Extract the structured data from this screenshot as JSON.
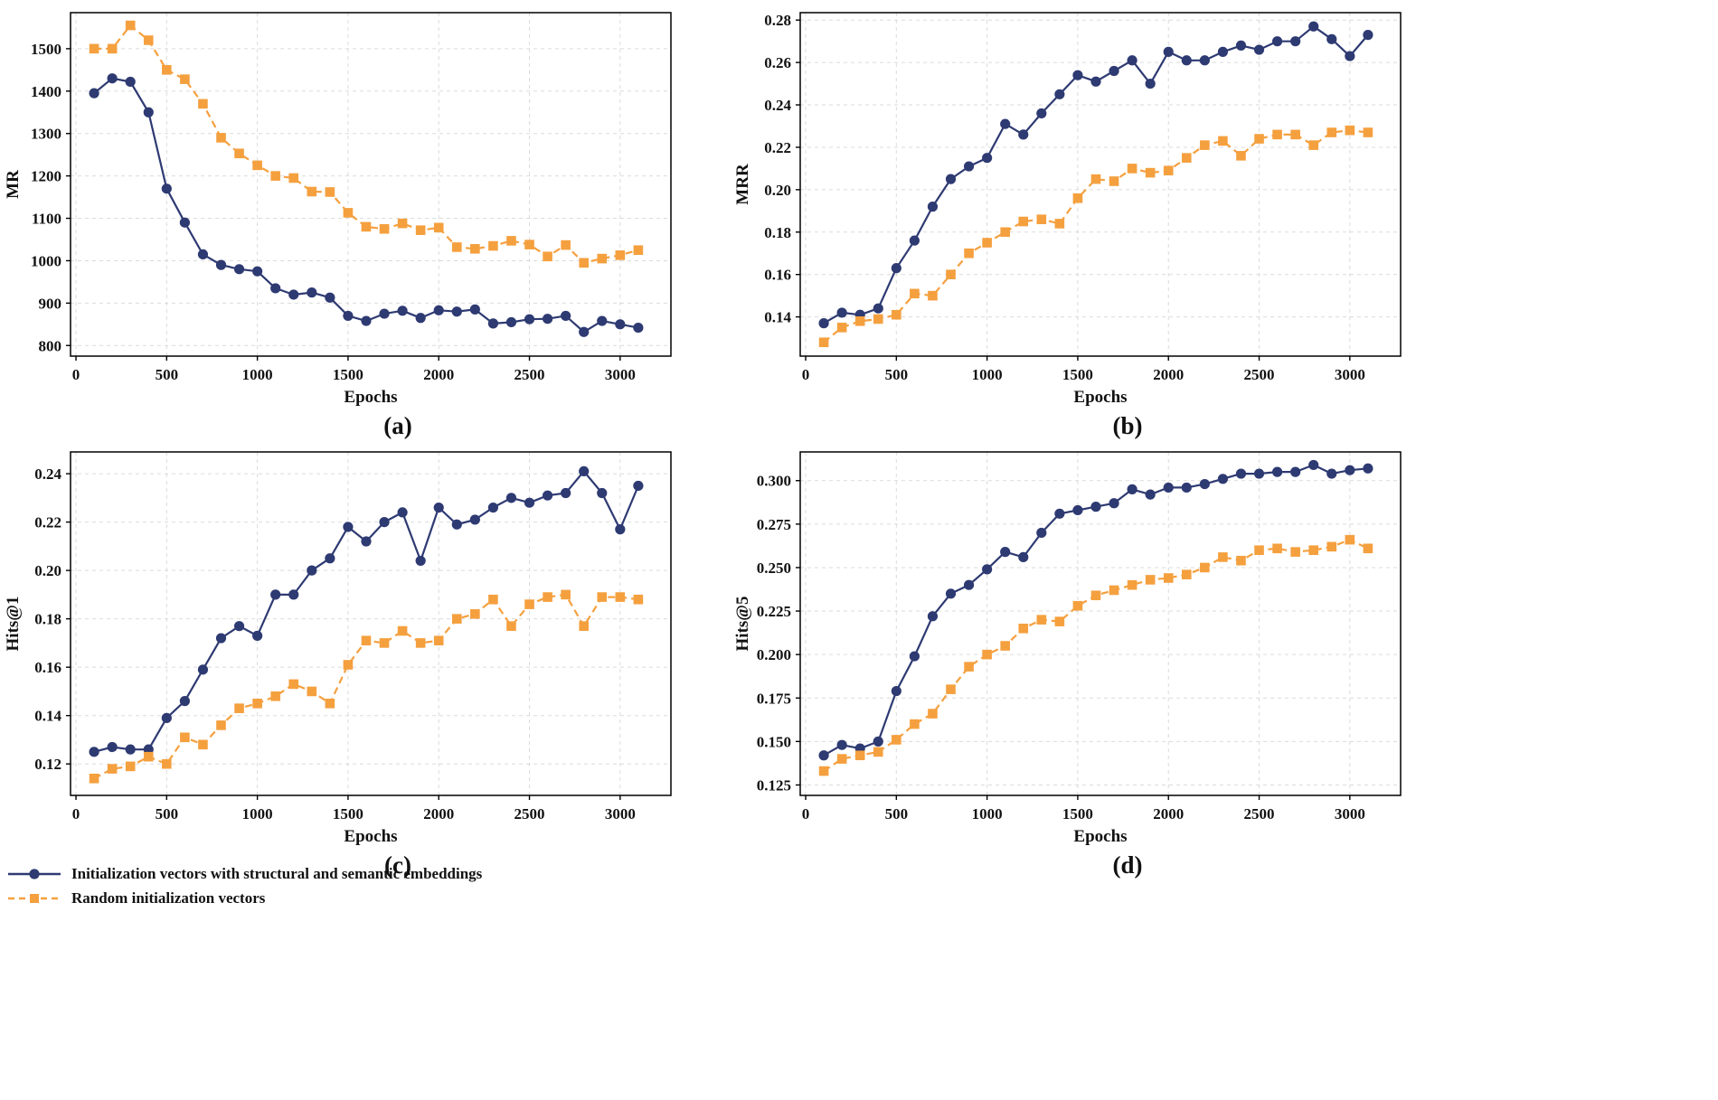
{
  "figure": {
    "description": "Four line charts comparing two embedding initialization strategies over training epochs"
  },
  "series_styles": [
    {
      "name": "Initialization vectors with structural and semantic embeddings",
      "color": "#2e3a72",
      "marker": "circle",
      "line": "solid"
    },
    {
      "name": "Random initialization vectors",
      "color": "#f5a03f",
      "marker": "square",
      "line": "dashed"
    }
  ],
  "legend": {
    "items": [
      {
        "label": "Initialization vectors with structural and semantic embeddings"
      },
      {
        "label": "Random initialization vectors"
      }
    ],
    "position": "bottom-left"
  },
  "chart_data": [
    {
      "type": "line",
      "panel": "(a)",
      "xlabel": "Epochs",
      "ylabel": "MR",
      "grid": true,
      "x": [
        100,
        200,
        300,
        400,
        500,
        600,
        700,
        800,
        900,
        1000,
        1100,
        1200,
        1300,
        1400,
        1500,
        1600,
        1700,
        1800,
        1900,
        2000,
        2100,
        2200,
        2300,
        2400,
        2500,
        2600,
        2700,
        2800,
        2900,
        3000,
        3100
      ],
      "series": [
        {
          "name": "Initialization vectors with structural and semantic embeddings",
          "values": [
            1395,
            1430,
            1422,
            1350,
            1170,
            1090,
            1015,
            990,
            980,
            975,
            935,
            920,
            925,
            913,
            870,
            858,
            875,
            882,
            865,
            883,
            880,
            885,
            852,
            855,
            862,
            863,
            870,
            832,
            858,
            850,
            842
          ]
        },
        {
          "name": "Random initialization vectors",
          "values": [
            1500,
            1500,
            1555,
            1520,
            1450,
            1428,
            1370,
            1290,
            1253,
            1225,
            1200,
            1195,
            1163,
            1162,
            1113,
            1080,
            1075,
            1088,
            1072,
            1078,
            1032,
            1028,
            1035,
            1047,
            1038,
            1010,
            1037,
            995,
            1005,
            1013,
            1025
          ]
        }
      ],
      "xlim": [
        -30,
        3280
      ],
      "ylim": [
        775,
        1585
      ],
      "xticks": [
        0,
        500,
        1000,
        1500,
        2000,
        2500,
        3000
      ],
      "xtick_labels": [
        "0",
        "500",
        "1000",
        "1500",
        "2000",
        "2500",
        "3000"
      ],
      "yticks": [
        800,
        900,
        1000,
        1100,
        1200,
        1300,
        1400,
        1500
      ],
      "ytick_labels": [
        "800",
        "900",
        "1000",
        "1100",
        "1200",
        "1300",
        "1400",
        "1500"
      ]
    },
    {
      "type": "line",
      "panel": "(b)",
      "xlabel": "Epochs",
      "ylabel": "MRR",
      "grid": true,
      "x": [
        100,
        200,
        300,
        400,
        500,
        600,
        700,
        800,
        900,
        1000,
        1100,
        1200,
        1300,
        1400,
        1500,
        1600,
        1700,
        1800,
        1900,
        2000,
        2100,
        2200,
        2300,
        2400,
        2500,
        2600,
        2700,
        2800,
        2900,
        3000,
        3100
      ],
      "series": [
        {
          "name": "Initialization vectors with structural and semantic embeddings",
          "values": [
            0.137,
            0.142,
            0.141,
            0.144,
            0.163,
            0.176,
            0.192,
            0.205,
            0.211,
            0.215,
            0.231,
            0.226,
            0.236,
            0.245,
            0.254,
            0.251,
            0.256,
            0.261,
            0.25,
            0.265,
            0.261,
            0.261,
            0.265,
            0.268,
            0.266,
            0.27,
            0.27,
            0.277,
            0.271,
            0.263,
            0.273
          ]
        },
        {
          "name": "Random initialization vectors",
          "values": [
            0.128,
            0.135,
            0.138,
            0.139,
            0.141,
            0.151,
            0.15,
            0.16,
            0.17,
            0.175,
            0.18,
            0.185,
            0.186,
            0.184,
            0.196,
            0.205,
            0.204,
            0.21,
            0.208,
            0.209,
            0.215,
            0.221,
            0.223,
            0.216,
            0.224,
            0.226,
            0.226,
            0.221,
            0.227,
            0.228,
            0.227
          ]
        }
      ],
      "xlim": [
        -30,
        3280
      ],
      "ylim": [
        0.1215,
        0.2835
      ],
      "xticks": [
        0,
        500,
        1000,
        1500,
        2000,
        2500,
        3000
      ],
      "xtick_labels": [
        "0",
        "500",
        "1000",
        "1500",
        "2000",
        "2500",
        "3000"
      ],
      "yticks": [
        0.14,
        0.16,
        0.18,
        0.2,
        0.22,
        0.24,
        0.26,
        0.28
      ],
      "ytick_labels": [
        "0.14",
        "0.16",
        "0.18",
        "0.20",
        "0.22",
        "0.24",
        "0.26",
        "0.28"
      ]
    },
    {
      "type": "line",
      "panel": "(c)",
      "xlabel": "Epochs",
      "ylabel": "Hits@1",
      "grid": true,
      "x": [
        100,
        200,
        300,
        400,
        500,
        600,
        700,
        800,
        900,
        1000,
        1100,
        1200,
        1300,
        1400,
        1500,
        1600,
        1700,
        1800,
        1900,
        2000,
        2100,
        2200,
        2300,
        2400,
        2500,
        2600,
        2700,
        2800,
        2900,
        3000,
        3100
      ],
      "series": [
        {
          "name": "Initialization vectors with structural and semantic embeddings",
          "values": [
            0.125,
            0.127,
            0.126,
            0.126,
            0.139,
            0.146,
            0.159,
            0.172,
            0.177,
            0.173,
            0.19,
            0.19,
            0.2,
            0.205,
            0.218,
            0.212,
            0.22,
            0.224,
            0.204,
            0.226,
            0.219,
            0.221,
            0.226,
            0.23,
            0.228,
            0.231,
            0.232,
            0.241,
            0.232,
            0.217,
            0.235
          ]
        },
        {
          "name": "Random initialization vectors",
          "values": [
            0.114,
            0.118,
            0.119,
            0.123,
            0.12,
            0.131,
            0.128,
            0.136,
            0.143,
            0.145,
            0.148,
            0.153,
            0.15,
            0.145,
            0.161,
            0.171,
            0.17,
            0.175,
            0.17,
            0.171,
            0.18,
            0.182,
            0.188,
            0.177,
            0.186,
            0.189,
            0.19,
            0.177,
            0.189,
            0.189,
            0.188
          ]
        }
      ],
      "xlim": [
        -30,
        3280
      ],
      "ylim": [
        0.107,
        0.249
      ],
      "xticks": [
        0,
        500,
        1000,
        1500,
        2000,
        2500,
        3000
      ],
      "xtick_labels": [
        "0",
        "500",
        "1000",
        "1500",
        "2000",
        "2500",
        "3000"
      ],
      "yticks": [
        0.12,
        0.14,
        0.16,
        0.18,
        0.2,
        0.22,
        0.24
      ],
      "ytick_labels": [
        "0.12",
        "0.14",
        "0.16",
        "0.18",
        "0.20",
        "0.22",
        "0.24"
      ]
    },
    {
      "type": "line",
      "panel": "(d)",
      "xlabel": "Epochs",
      "ylabel": "Hits@5",
      "grid": true,
      "x": [
        100,
        200,
        300,
        400,
        500,
        600,
        700,
        800,
        900,
        1000,
        1100,
        1200,
        1300,
        1400,
        1500,
        1600,
        1700,
        1800,
        1900,
        2000,
        2100,
        2200,
        2300,
        2400,
        2500,
        2600,
        2700,
        2800,
        2900,
        3000,
        3100
      ],
      "series": [
        {
          "name": "Initialization vectors with structural and semantic embeddings",
          "values": [
            0.142,
            0.148,
            0.146,
            0.15,
            0.179,
            0.199,
            0.222,
            0.235,
            0.24,
            0.249,
            0.259,
            0.256,
            0.27,
            0.281,
            0.283,
            0.285,
            0.287,
            0.295,
            0.292,
            0.296,
            0.296,
            0.298,
            0.301,
            0.304,
            0.304,
            0.305,
            0.305,
            0.309,
            0.304,
            0.306,
            0.307
          ]
        },
        {
          "name": "Random initialization vectors",
          "values": [
            0.133,
            0.14,
            0.142,
            0.144,
            0.151,
            0.16,
            0.166,
            0.18,
            0.193,
            0.2,
            0.205,
            0.215,
            0.22,
            0.219,
            0.228,
            0.234,
            0.237,
            0.24,
            0.243,
            0.244,
            0.246,
            0.25,
            0.256,
            0.254,
            0.26,
            0.261,
            0.259,
            0.26,
            0.262,
            0.266,
            0.261
          ]
        }
      ],
      "xlim": [
        -30,
        3280
      ],
      "ylim": [
        0.119,
        0.3165
      ],
      "xticks": [
        0,
        500,
        1000,
        1500,
        2000,
        2500,
        3000
      ],
      "xtick_labels": [
        "0",
        "500",
        "1000",
        "1500",
        "2000",
        "2500",
        "3000"
      ],
      "yticks": [
        0.125,
        0.15,
        0.175,
        0.2,
        0.225,
        0.25,
        0.275,
        0.3
      ],
      "ytick_labels": [
        "0.125",
        "0.150",
        "0.175",
        "0.200",
        "0.225",
        "0.250",
        "0.275",
        "0.300"
      ]
    }
  ]
}
